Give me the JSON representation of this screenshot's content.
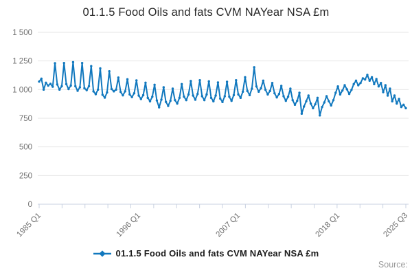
{
  "title": "01.1.5 Food Oils and fats CVM NAYear NSA £m",
  "legend": {
    "label": "01.1.5 Food Oils and fats CVM NAYear NSA £m",
    "marker": "line-diamond-icon"
  },
  "source_label": "Source:",
  "colors": {
    "series": "#1178be",
    "grid": "#e6e6e6",
    "axis": "#c8d1e0",
    "tick_label": "#6e6e6e",
    "title_text": "#262626",
    "source_text": "#9a9a9a"
  },
  "chart_data": {
    "type": "line",
    "title": "01.1.5 Food Oils and fats CVM NAYear NSA £m",
    "frequency": "quarterly",
    "x_start": "1985 Q1",
    "x_end": "2025 Q3",
    "ylim": [
      0,
      1500
    ],
    "y_ticks": [
      0,
      250,
      500,
      750,
      1000,
      1250,
      1500
    ],
    "grid": "horizontal",
    "legend_position": "bottom",
    "minor_x_ticks": 17,
    "x_tick_labels": [
      {
        "label": "1985 Q1",
        "index": 0
      },
      {
        "label": "1996 Q1",
        "index": 44
      },
      {
        "label": "2007 Q1",
        "index": 88
      },
      {
        "label": "2018 Q1",
        "index": 132
      },
      {
        "label": "2025 Q3",
        "index": 162
      }
    ],
    "series": [
      {
        "name": "01.1.5 Food Oils and fats CVM NAYear NSA £m",
        "values": [
          1070,
          1095,
          1000,
          1060,
          1035,
          1050,
          1025,
          1230,
          1045,
          1000,
          1030,
          1232,
          1048,
          1005,
          1035,
          1240,
          1030,
          990,
          1020,
          1232,
          1012,
          995,
          1030,
          1205,
          985,
          960,
          1000,
          1185,
          955,
          930,
          975,
          1160,
          1005,
          985,
          1000,
          1105,
          980,
          950,
          985,
          1090,
          958,
          935,
          968,
          1080,
          948,
          918,
          952,
          1060,
          928,
          898,
          938,
          1042,
          905,
          845,
          912,
          1020,
          893,
          858,
          902,
          1008,
          908,
          878,
          928,
          1048,
          938,
          908,
          958,
          1075,
          948,
          912,
          962,
          1082,
          942,
          908,
          958,
          1072,
          928,
          898,
          948,
          1062,
          922,
          892,
          942,
          1068,
          938,
          902,
          952,
          1082,
          958,
          928,
          982,
          1108,
          988,
          952,
          1008,
          1195,
          1028,
          982,
          1012,
          1078,
          998,
          958,
          988,
          1058,
          968,
          932,
          962,
          1032,
          942,
          902,
          938,
          1008,
          908,
          868,
          902,
          972,
          790,
          852,
          898,
          948,
          878,
          838,
          872,
          928,
          775,
          848,
          888,
          942,
          898,
          862,
          908,
          972,
          1028,
          958,
          992,
          1038,
          1002,
          962,
          998,
          1048,
          1078,
          1038,
          1058,
          1098,
          1088,
          1128,
          1078,
          1108,
          1048,
          1092,
          1028,
          1058,
          978,
          1038,
          948,
          1008,
          898,
          948,
          878,
          918,
          848,
          868,
          838
        ]
      }
    ]
  }
}
